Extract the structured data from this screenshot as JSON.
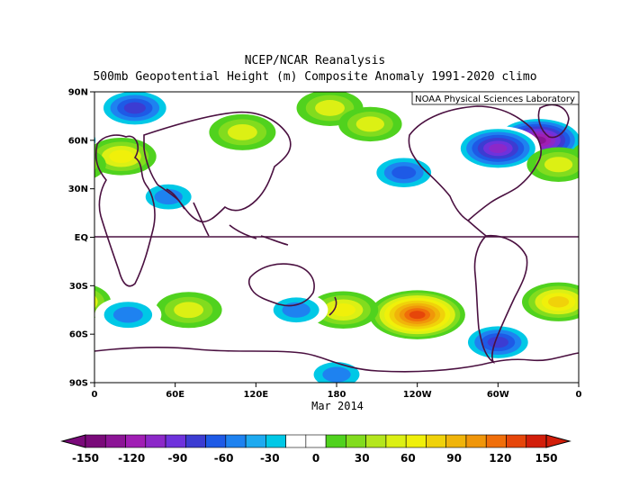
{
  "title_line1": "NCEP/NCAR Reanalysis",
  "title_line2": "500mb Geopotential Height (m) Composite Anomaly 1991-2020 climo",
  "credit": "NOAA Physical Sciences Laboratory",
  "date_label": "Mar 2014",
  "lat_labels": [
    "90N",
    "60N",
    "30N",
    "EQ",
    "30S",
    "60S",
    "90S"
  ],
  "lon_labels": [
    "0",
    "60E",
    "120E",
    "180",
    "120W",
    "60W",
    "0"
  ],
  "colorbar": {
    "labels": [
      "-150",
      "-120",
      "-90",
      "-60",
      "-30",
      "0",
      "30",
      "60",
      "90",
      "120",
      "150"
    ],
    "colors": [
      "#7a0a7a",
      "#8c1496",
      "#a01eb4",
      "#8c28c8",
      "#6e32dc",
      "#3c3cd2",
      "#1e5ae6",
      "#1e82f0",
      "#1eaaf0",
      "#00c8e6",
      "#ffffff",
      "#ffffff",
      "#50d21e",
      "#82dc1e",
      "#b4e61e",
      "#dcf014",
      "#f0f00a",
      "#f0d20a",
      "#f0b40a",
      "#f0960a",
      "#f06e0a",
      "#e6460a",
      "#d21e0a"
    ]
  },
  "chart_data": {
    "type": "heatmap",
    "variable": "500mb Geopotential Height (m) Composite Anomaly",
    "units": "m",
    "period": "Mar 2014",
    "longitude_range": [
      0,
      360
    ],
    "latitude_range": [
      -90,
      90
    ],
    "color_scale_min": -150,
    "color_scale_max": 150,
    "anomaly_centers": [
      {
        "lon": 330,
        "lat": 60,
        "value": -130
      },
      {
        "lon": 300,
        "lat": 55,
        "value": -110
      },
      {
        "lon": 30,
        "lat": 80,
        "value": -80
      },
      {
        "lon": 230,
        "lat": 40,
        "value": -60
      },
      {
        "lon": 55,
        "lat": 25,
        "value": -40
      },
      {
        "lon": 20,
        "lat": 50,
        "value": 60
      },
      {
        "lon": 110,
        "lat": 65,
        "value": 50
      },
      {
        "lon": 175,
        "lat": 80,
        "value": 50
      },
      {
        "lon": 205,
        "lat": 70,
        "value": 40
      },
      {
        "lon": 345,
        "lat": 45,
        "value": 40
      },
      {
        "lon": 240,
        "lat": -48,
        "value": 140
      },
      {
        "lon": 185,
        "lat": -45,
        "value": 60
      },
      {
        "lon": 70,
        "lat": -45,
        "value": 50
      },
      {
        "lon": 345,
        "lat": -40,
        "value": 70
      },
      {
        "lon": 300,
        "lat": -65,
        "value": -70
      },
      {
        "lon": 25,
        "lat": -48,
        "value": -50
      },
      {
        "lon": 150,
        "lat": -45,
        "value": -40
      },
      {
        "lon": 180,
        "lat": -85,
        "value": -40
      }
    ]
  }
}
